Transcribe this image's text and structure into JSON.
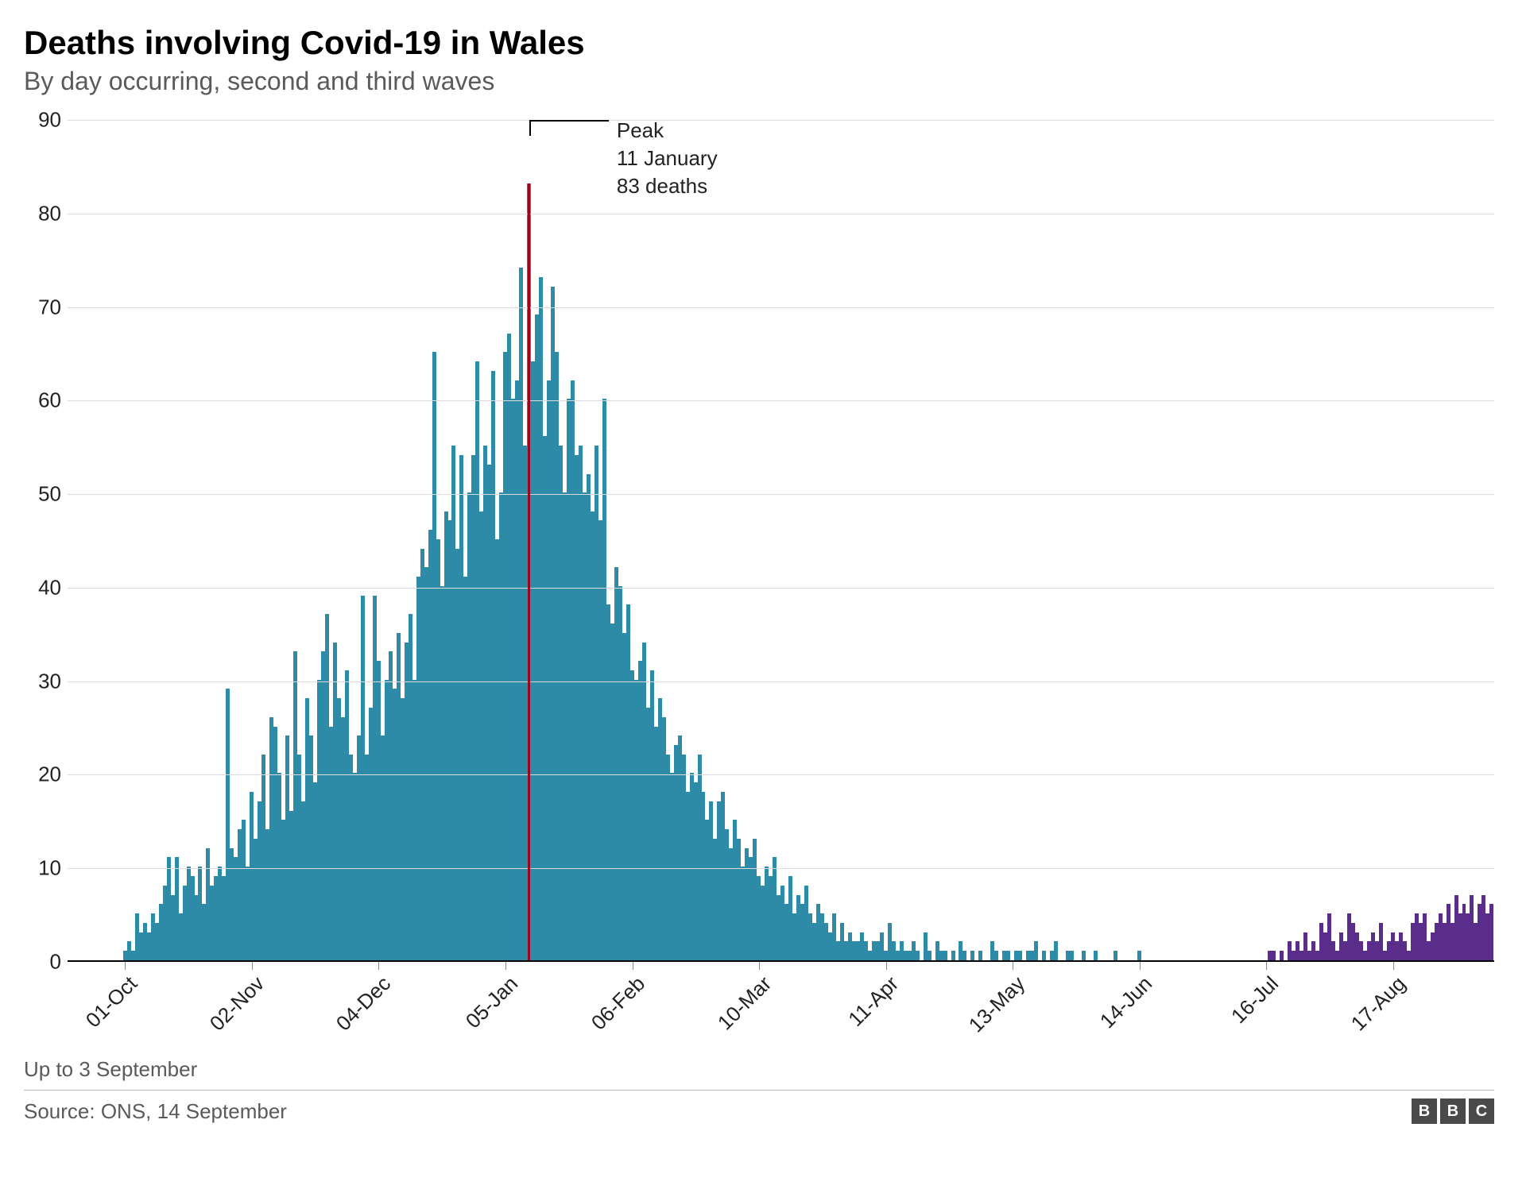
{
  "chart": {
    "type": "bar",
    "title": "Deaths involving Covid-19 in Wales",
    "subtitle": "By day occurring, second and third waves",
    "title_fontsize": 42,
    "subtitle_fontsize": 32,
    "title_color": "#000000",
    "subtitle_color": "#5a5a5a",
    "background_color": "#ffffff",
    "grid_color": "#dcdcdc",
    "axis_color": "#000000",
    "wave2_color": "#2e8ba8",
    "wave3_color": "#5b2d8a",
    "peak_line_color": "#a3001b",
    "ylim": [
      0,
      90
    ],
    "ytick_step": 10,
    "y_ticks": [
      0,
      10,
      20,
      30,
      40,
      50,
      60,
      70,
      80,
      90
    ],
    "x_tick_labels": [
      "01-Oct",
      "02-Nov",
      "04-Dec",
      "05-Jan",
      "06-Feb",
      "10-Mar",
      "11-Apr",
      "13-May",
      "14-Jun",
      "16-Jul",
      "17-Aug"
    ],
    "x_tick_indices": [
      14,
      46,
      78,
      110,
      142,
      174,
      206,
      238,
      270,
      302,
      334
    ],
    "x_tick_rotation": -45,
    "peak_index": 116,
    "annotation": {
      "lines": [
        "Peak",
        "11 January",
        "83 deaths"
      ],
      "fontsize": 26
    },
    "footnote": "Up to 3 September",
    "source": "Source: ONS, 14 September",
    "logo": "BBC",
    "values": [
      0,
      0,
      0,
      0,
      0,
      0,
      0,
      0,
      0,
      0,
      0,
      0,
      0,
      0,
      1,
      2,
      1,
      5,
      3,
      4,
      3,
      5,
      4,
      6,
      8,
      11,
      7,
      11,
      5,
      8,
      10,
      9,
      7,
      10,
      6,
      12,
      8,
      9,
      10,
      9,
      29,
      12,
      11,
      14,
      15,
      10,
      18,
      13,
      17,
      22,
      14,
      26,
      25,
      20,
      15,
      24,
      16,
      33,
      22,
      17,
      28,
      24,
      19,
      30,
      33,
      37,
      25,
      34,
      28,
      26,
      31,
      22,
      20,
      24,
      39,
      22,
      27,
      39,
      32,
      24,
      30,
      33,
      29,
      35,
      28,
      34,
      37,
      30,
      41,
      44,
      42,
      46,
      65,
      45,
      40,
      48,
      47,
      55,
      44,
      54,
      41,
      50,
      54,
      64,
      48,
      55,
      53,
      63,
      45,
      50,
      65,
      67,
      60,
      62,
      74,
      55,
      83,
      64,
      69,
      73,
      56,
      62,
      72,
      65,
      55,
      50,
      60,
      62,
      54,
      55,
      50,
      52,
      48,
      55,
      47,
      60,
      38,
      36,
      42,
      40,
      35,
      38,
      31,
      30,
      32,
      34,
      27,
      31,
      25,
      28,
      26,
      22,
      20,
      23,
      24,
      22,
      18,
      20,
      19,
      22,
      18,
      15,
      17,
      13,
      17,
      18,
      14,
      12,
      15,
      13,
      10,
      12,
      11,
      13,
      9,
      8,
      10,
      9,
      11,
      7,
      8,
      6,
      9,
      5,
      7,
      6,
      8,
      5,
      4,
      6,
      5,
      4,
      3,
      5,
      2,
      4,
      2,
      3,
      2,
      2,
      3,
      2,
      1,
      2,
      2,
      3,
      1,
      4,
      2,
      1,
      2,
      1,
      1,
      2,
      1,
      0,
      3,
      1,
      0,
      2,
      1,
      1,
      0,
      1,
      0,
      2,
      1,
      0,
      1,
      0,
      1,
      0,
      0,
      2,
      1,
      0,
      1,
      1,
      0,
      1,
      1,
      0,
      1,
      1,
      2,
      0,
      1,
      0,
      1,
      2,
      0,
      0,
      1,
      1,
      0,
      0,
      1,
      0,
      0,
      1,
      0,
      0,
      0,
      0,
      1,
      0,
      0,
      0,
      0,
      0,
      1,
      0,
      0,
      0,
      0,
      0,
      0,
      0,
      0,
      0,
      0,
      0,
      0,
      0,
      0,
      0,
      0,
      0,
      0,
      0,
      0,
      0,
      0,
      0,
      0,
      0,
      0,
      0,
      0,
      0,
      0,
      0,
      0,
      1,
      1,
      0,
      1,
      0,
      2,
      1,
      2,
      1,
      3,
      1,
      2,
      1,
      4,
      3,
      5,
      2,
      1,
      3,
      2,
      5,
      4,
      3,
      2,
      1,
      2,
      3,
      2,
      4,
      1,
      2,
      3,
      2,
      3,
      2,
      1,
      4,
      5,
      4,
      5,
      2,
      3,
      4,
      5,
      4,
      6,
      4,
      7,
      5,
      6,
      5,
      7,
      4,
      6,
      7,
      5,
      6
    ],
    "wave3_start_index": 288
  }
}
